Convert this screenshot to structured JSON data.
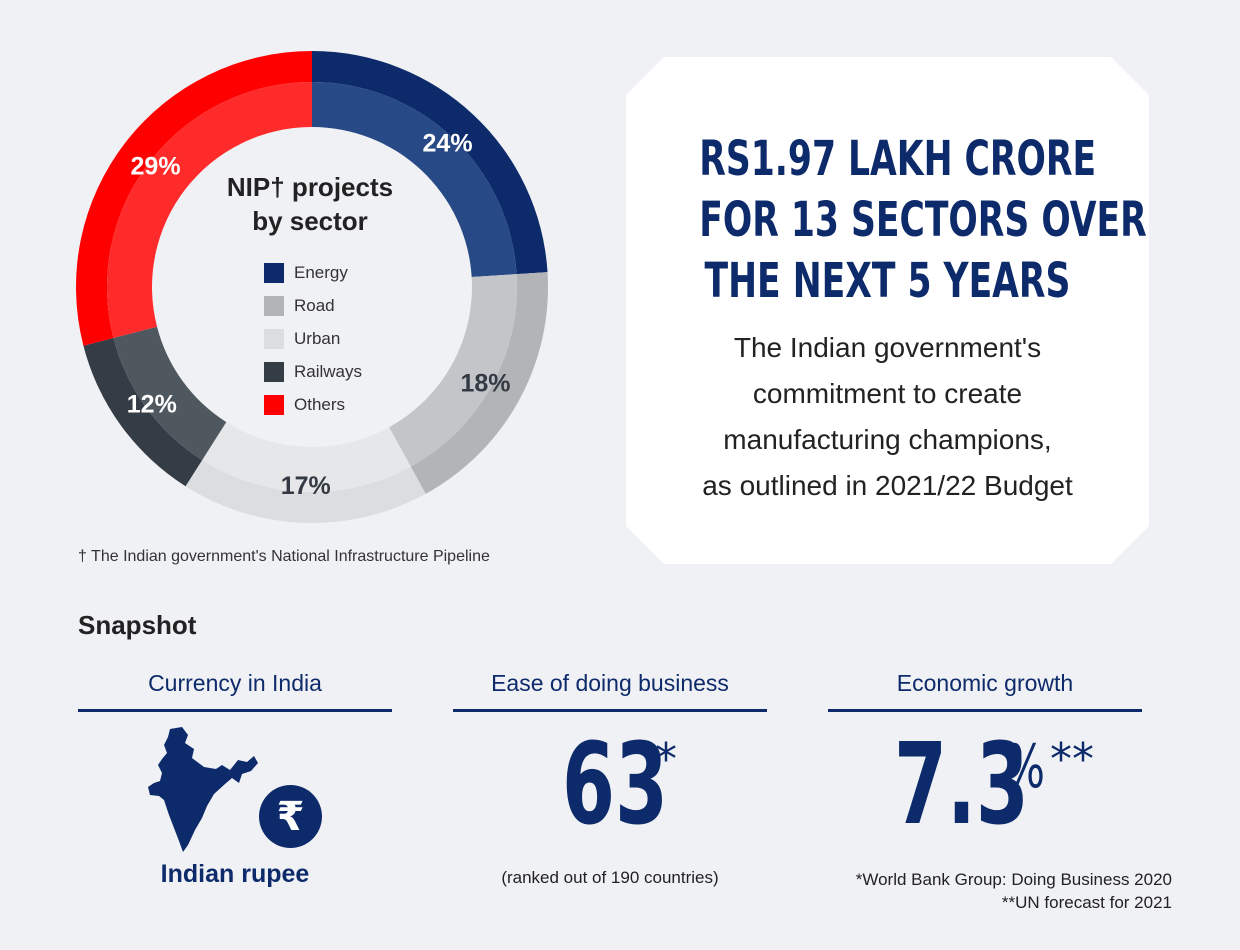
{
  "chart_data": {
    "type": "pie",
    "title_line1": "NIP† projects",
    "title_line2": "by sector",
    "slices": [
      {
        "name": "Energy",
        "value": 24,
        "label": "24%",
        "color": "#0d2a6b",
        "inner_color": "#274985"
      },
      {
        "name": "Road",
        "value": 18,
        "label": "18%",
        "color": "#b3b4b8",
        "inner_color": "#c4c5c9"
      },
      {
        "name": "Urban",
        "value": 17,
        "label": "17%",
        "color": "#dcdde0",
        "inner_color": "#e6e7e9"
      },
      {
        "name": "Railways",
        "value": 12,
        "label": "12%",
        "color": "#343c45",
        "inner_color": "#4f585f"
      },
      {
        "name": "Others",
        "value": 29,
        "label": "29%",
        "color": "#ff0000",
        "inner_color": "#ff2b2b"
      }
    ],
    "legend_placement": "center"
  },
  "footnote_nip": "† The Indian government's National Infrastructure Pipeline",
  "callout": {
    "headline": [
      "RS1.97 LAKH CRORE",
      "FOR 13 SECTORS OVER",
      "THE NEXT 5 YEARS"
    ],
    "body": [
      "The Indian government's",
      "commitment to create",
      "manufacturing champions,",
      "as outlined in 2021/22 Budget"
    ]
  },
  "snapshot": {
    "title": "Snapshot",
    "currency": {
      "label": "Currency in India",
      "symbol": "₹",
      "value": "Indian rupee"
    },
    "ease": {
      "label": "Ease of doing business",
      "value": "63",
      "mark": "*",
      "note": "(ranked out of 190 countries)"
    },
    "growth": {
      "label": "Economic growth",
      "value": "7.3",
      "unit": "%",
      "mark": "**"
    },
    "sources": [
      "*World Bank Group: Doing Business 2020",
      "**UN forecast for 2021"
    ]
  }
}
